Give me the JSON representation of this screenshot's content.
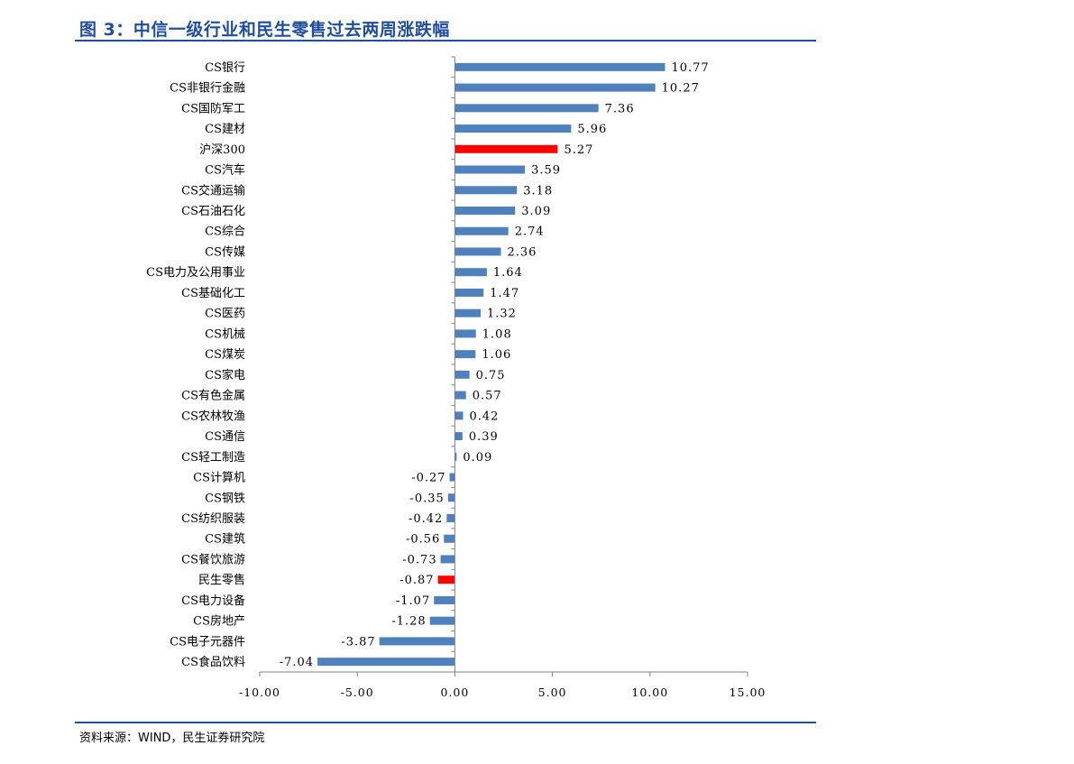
{
  "title": "图 3：中信一级行业和民生零售过去两周涨跌幅",
  "source": "资料来源：WIND，民生证券研究院",
  "colors": {
    "bar": "#4f81bd",
    "highlight": "#ff0000",
    "rule": "#1f4e9c",
    "axis": "#808080"
  },
  "chart_data": {
    "type": "bar",
    "orientation": "horizontal",
    "title": "",
    "xlabel": "",
    "ylabel": "",
    "xlim": [
      -10,
      15
    ],
    "xticks": [
      -10,
      -5,
      0,
      5,
      10,
      15
    ],
    "xtick_labels": [
      "-10.00",
      "-5.00",
      "0.00",
      "5.00",
      "10.00",
      "15.00"
    ],
    "grid": false,
    "categories": [
      "CS银行",
      "CS非银行金融",
      "CS国防军工",
      "CS建材",
      "沪深300",
      "CS汽车",
      "CS交通运输",
      "CS石油石化",
      "CS综合",
      "CS传媒",
      "CS电力及公用事业",
      "CS基础化工",
      "CS医药",
      "CS机械",
      "CS煤炭",
      "CS家电",
      "CS有色金属",
      "CS农林牧渔",
      "CS通信",
      "CS轻工制造",
      "CS计算机",
      "CS钢铁",
      "CS纺织服装",
      "CS建筑",
      "CS餐饮旅游",
      "民生零售",
      "CS电力设备",
      "CS房地产",
      "CS电子元器件",
      "CS食品饮料"
    ],
    "values": [
      10.77,
      10.27,
      7.36,
      5.96,
      5.27,
      3.59,
      3.18,
      3.09,
      2.74,
      2.36,
      1.64,
      1.47,
      1.32,
      1.08,
      1.06,
      0.75,
      0.57,
      0.42,
      0.39,
      0.09,
      -0.27,
      -0.35,
      -0.42,
      -0.56,
      -0.73,
      -0.87,
      -1.07,
      -1.28,
      -3.87,
      -7.04
    ],
    "value_labels": [
      "10.77",
      "10.27",
      "7.36",
      "5.96",
      "5.27",
      "3.59",
      "3.18",
      "3.09",
      "2.74",
      "2.36",
      "1.64",
      "1.47",
      "1.32",
      "1.08",
      "1.06",
      "0.75",
      "0.57",
      "0.42",
      "0.39",
      "0.09",
      "-0.27",
      "-0.35",
      "-0.42",
      "-0.56",
      "-0.73",
      "-0.87",
      "-1.07",
      "-1.28",
      "-3.87",
      "-7.04"
    ],
    "highlighted": [
      "沪深300",
      "民生零售"
    ]
  }
}
